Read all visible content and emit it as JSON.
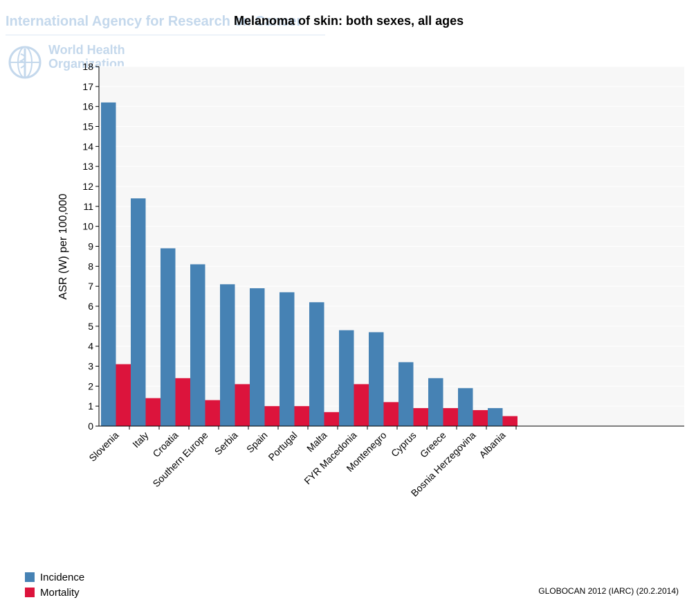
{
  "watermark": {
    "organization": "International Agency for Research on Cancer",
    "who_name": "World Health Organization"
  },
  "source": "GLOBOCAN 2012 (IARC) (20.2.2014)",
  "colors": {
    "incidence": "#4682b4",
    "mortality": "#dc143c",
    "plot_background": "#f7f7f7",
    "grid": "#ffffff"
  },
  "chart_data": {
    "type": "bar",
    "title": "Melanoma of skin: both sexes, all ages",
    "xlabel": "",
    "ylabel": "ASR (W) per 100,000",
    "ylim": [
      0,
      18
    ],
    "yticks": [
      0,
      1,
      2,
      3,
      4,
      5,
      6,
      7,
      8,
      9,
      10,
      11,
      12,
      13,
      14,
      15,
      16,
      17,
      18
    ],
    "grid": true,
    "legend_position": "bottom-left",
    "categories": [
      "Slovenia",
      "Italy",
      "Croatia",
      "Southern Europe",
      "Serbia",
      "Spain",
      "Portugal",
      "Malta",
      "FYR Macedonia",
      "Montenegro",
      "Cyprus",
      "Greece",
      "Bosnia Herzegovina",
      "Albania"
    ],
    "series": [
      {
        "name": "Incidence",
        "values": [
          16.2,
          11.4,
          8.9,
          8.1,
          7.1,
          6.9,
          6.7,
          6.2,
          4.8,
          4.7,
          3.2,
          2.4,
          1.9,
          0.9
        ]
      },
      {
        "name": "Mortality",
        "values": [
          3.1,
          1.4,
          2.4,
          1.3,
          2.1,
          1.0,
          1.0,
          0.7,
          2.1,
          1.2,
          0.9,
          0.9,
          0.8,
          0.5
        ]
      }
    ]
  }
}
